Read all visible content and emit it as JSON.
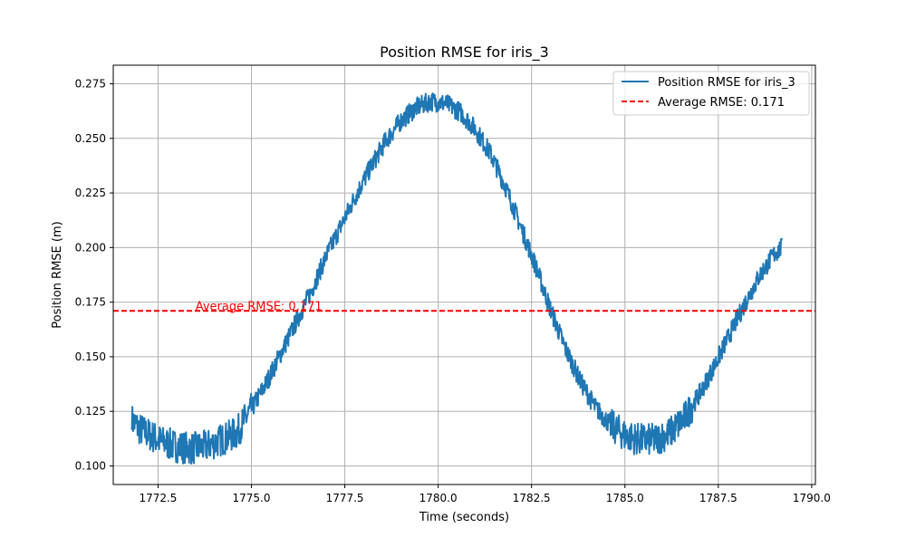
{
  "chart_data": {
    "type": "line",
    "title": "Position RMSE for iris_3",
    "xlabel": "Time (seconds)",
    "ylabel": "Position RMSE (m)",
    "xlim": [
      1771.3,
      1790.1
    ],
    "ylim": [
      0.0915,
      0.2835
    ],
    "x_ticks": [
      1772.5,
      1775.0,
      1777.5,
      1780.0,
      1782.5,
      1785.0,
      1787.5,
      1790.0
    ],
    "x_tick_labels": [
      "1772.5",
      "1775.0",
      "1777.5",
      "1780.0",
      "1782.5",
      "1785.0",
      "1787.5",
      "1790.0"
    ],
    "y_ticks": [
      0.1,
      0.125,
      0.15,
      0.175,
      0.2,
      0.225,
      0.25,
      0.275
    ],
    "y_tick_labels": [
      "0.100",
      "0.125",
      "0.150",
      "0.175",
      "0.200",
      "0.225",
      "0.250",
      "0.275"
    ],
    "grid": true,
    "legend_position": "top-right",
    "series": [
      {
        "name": "Position RMSE for iris_3",
        "color": "#1f77b4",
        "x": [
          1771.8,
          1772.0,
          1772.3,
          1772.6,
          1773.0,
          1773.4,
          1773.8,
          1774.2,
          1774.6,
          1775.0,
          1775.4,
          1775.8,
          1776.2,
          1776.6,
          1777.0,
          1777.4,
          1777.8,
          1778.2,
          1778.6,
          1779.0,
          1779.4,
          1779.8,
          1780.2,
          1780.6,
          1781.0,
          1781.4,
          1781.8,
          1782.2,
          1782.6,
          1783.0,
          1783.4,
          1783.8,
          1784.2,
          1784.6,
          1785.0,
          1785.4,
          1785.8,
          1786.2,
          1786.6,
          1787.0,
          1787.4,
          1787.8,
          1788.2,
          1788.6,
          1789.0,
          1789.2
        ],
        "y": [
          0.121,
          0.117,
          0.114,
          0.111,
          0.109,
          0.108,
          0.109,
          0.112,
          0.115,
          0.126,
          0.138,
          0.152,
          0.166,
          0.18,
          0.196,
          0.21,
          0.224,
          0.237,
          0.249,
          0.258,
          0.264,
          0.267,
          0.266,
          0.262,
          0.254,
          0.243,
          0.228,
          0.21,
          0.192,
          0.172,
          0.154,
          0.139,
          0.127,
          0.119,
          0.114,
          0.112,
          0.112,
          0.115,
          0.122,
          0.133,
          0.146,
          0.16,
          0.174,
          0.187,
          0.197,
          0.2
        ]
      }
    ],
    "reference_line": {
      "name": "Average RMSE: 0.171",
      "y": 0.171,
      "color": "#ff0000",
      "style": "dashed",
      "annotation": "Average RMSE: 0.171",
      "annotation_x": 1773.5
    }
  }
}
